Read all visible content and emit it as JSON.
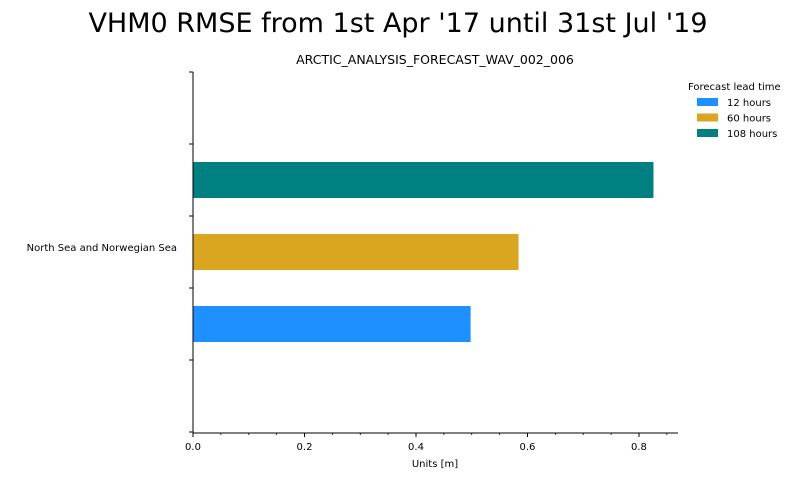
{
  "chart_data": {
    "type": "bar",
    "orientation": "horizontal",
    "title": "VHM0 RMSE from 1st Apr '17 until 31st Jul '19",
    "subtitle": "ARCTIC_ANALYSIS_FORECAST_WAV_002_006",
    "xlabel": "Units [m]",
    "ylabel": "",
    "xlim": [
      0,
      0.87
    ],
    "xticks": [
      "0.0",
      "0.2",
      "0.4",
      "0.6",
      "0.8"
    ],
    "categories": [
      "North Sea and Norwegian Sea"
    ],
    "series": [
      {
        "name": "12 hours",
        "color": "#1e90ff",
        "values": [
          0.498
        ]
      },
      {
        "name": "60 hours",
        "color": "#daa520",
        "values": [
          0.584
        ]
      },
      {
        "name": "108 hours",
        "color": "#008080",
        "values": [
          0.826
        ]
      }
    ],
    "legend": {
      "title": "Forecast lead time",
      "position": "upper-right-outside"
    },
    "grid": false
  }
}
